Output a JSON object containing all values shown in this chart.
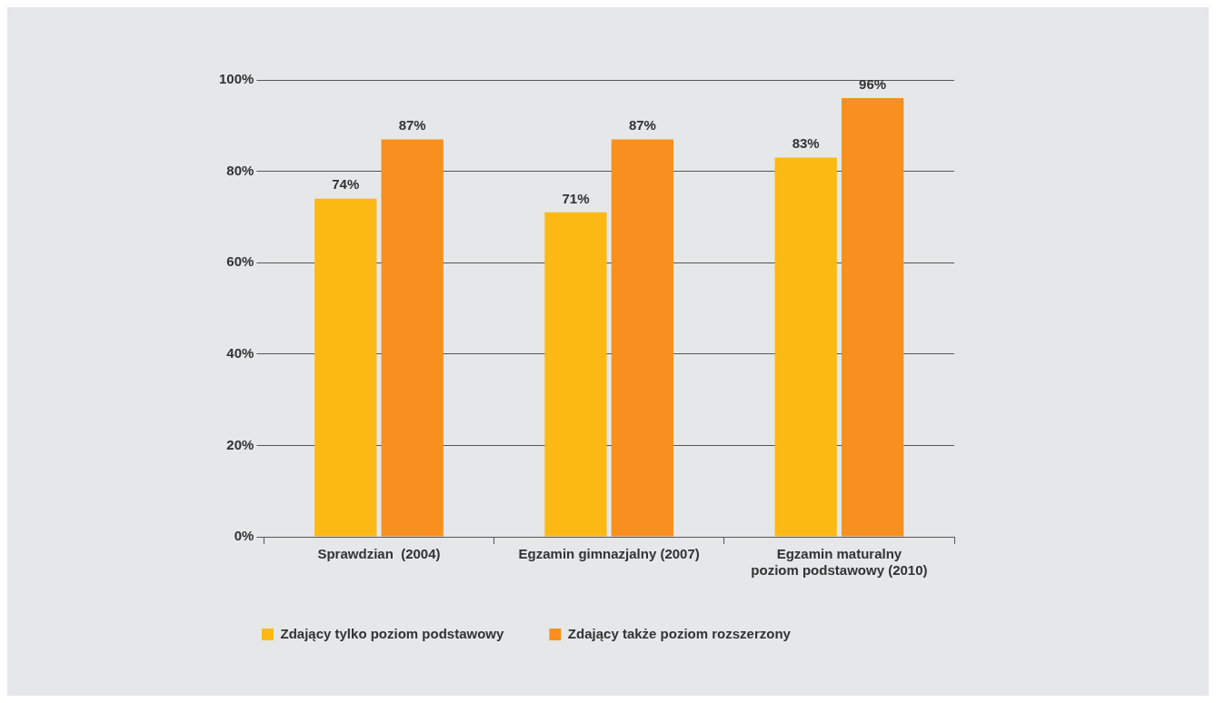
{
  "chart_data": {
    "type": "bar",
    "categories": [
      "Sprawdzian  (2004)",
      "Egzamin gimnazjalny (2007)",
      "Egzamin maturalny poziom podstawowy (2010)"
    ],
    "series": [
      {
        "name": "Zdający tylko poziom podstawowy",
        "color": "#fdb913",
        "values": [
          74,
          71,
          83
        ],
        "value_labels": [
          "74%",
          "71%",
          "83%"
        ]
      },
      {
        "name": "Zdający także poziom rozszerzony",
        "color": "#f7901e",
        "values": [
          87,
          87,
          96
        ],
        "value_labels": [
          "87%",
          "87%",
          "96%"
        ]
      }
    ],
    "ylim": [
      0,
      100
    ],
    "yticks": [
      {
        "value": 0,
        "label": "0%"
      },
      {
        "value": 20,
        "label": "20%"
      },
      {
        "value": 40,
        "label": "40%"
      },
      {
        "value": 60,
        "label": "60%"
      },
      {
        "value": 80,
        "label": "80%"
      },
      {
        "value": 100,
        "label": "100%"
      }
    ],
    "grid": "y",
    "legend": "bottom"
  }
}
